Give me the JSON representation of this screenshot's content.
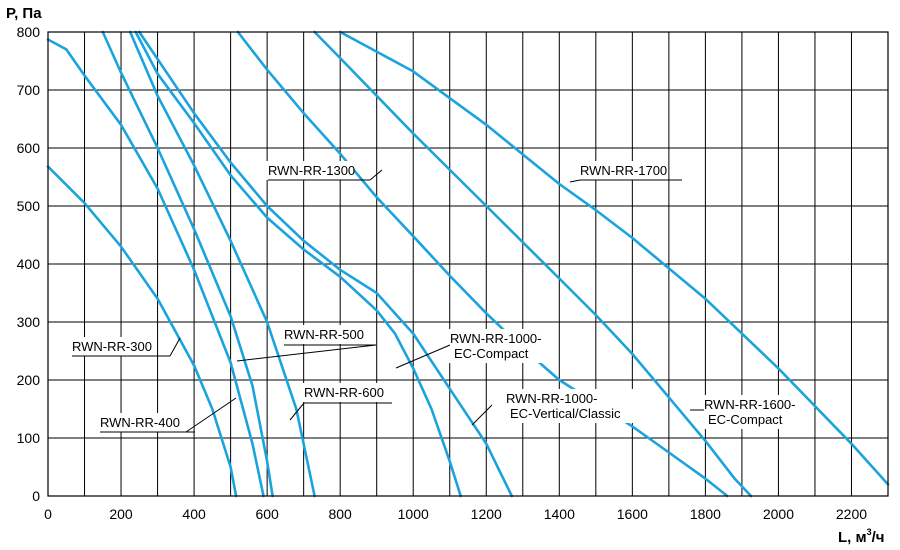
{
  "chart_data": {
    "type": "line",
    "xlabel": "L, м",
    "xlabel_sup": "3",
    "xlabel_suffix": "/ч",
    "ylabel": "P, Па",
    "xlim": [
      0,
      2300
    ],
    "ylim": [
      0,
      800
    ],
    "grid": true,
    "x_ticks": [
      0,
      200,
      400,
      600,
      800,
      1000,
      1200,
      1400,
      1600,
      1800,
      2000,
      2200
    ],
    "x_tick_labels": [
      "0",
      "200",
      "400",
      "600",
      "800",
      "1000",
      "1200",
      "1400",
      "1600",
      "1800",
      "2000",
      "2200"
    ],
    "x_gridlines": [
      100,
      200,
      300,
      400,
      500,
      600,
      700,
      800,
      900,
      1000,
      1100,
      1200,
      1300,
      1400,
      1500,
      1600,
      1700,
      1800,
      1900,
      2000,
      2100,
      2200
    ],
    "y_ticks": [
      0,
      100,
      200,
      300,
      400,
      500,
      600,
      700,
      800
    ],
    "y_tick_labels": [
      "0",
      "100",
      "200",
      "300",
      "400",
      "500",
      "600",
      "700",
      "800"
    ],
    "line_color": "#1aa3dd",
    "series": [
      {
        "name": "RWN-RR-300",
        "label_lines": [
          "RWN-RR-300"
        ],
        "points": [
          [
            0,
            568
          ],
          [
            100,
            505
          ],
          [
            200,
            430
          ],
          [
            300,
            340
          ],
          [
            400,
            225
          ],
          [
            450,
            150
          ],
          [
            500,
            50
          ],
          [
            515,
            0
          ]
        ]
      },
      {
        "name": "RWN-RR-400",
        "label_lines": [
          "RWN-RR-400"
        ],
        "points": [
          [
            0,
            787
          ],
          [
            50,
            770
          ],
          [
            100,
            725
          ],
          [
            200,
            640
          ],
          [
            300,
            530
          ],
          [
            400,
            390
          ],
          [
            500,
            230
          ],
          [
            560,
            90
          ],
          [
            590,
            0
          ]
        ]
      },
      {
        "name": "RWN-RR-500",
        "label_lines": [
          "RWN-RR-500"
        ],
        "points": [
          [
            150,
            800
          ],
          [
            200,
            730
          ],
          [
            300,
            600
          ],
          [
            400,
            460
          ],
          [
            500,
            310
          ],
          [
            560,
            190
          ],
          [
            600,
            60
          ],
          [
            615,
            0
          ]
        ]
      },
      {
        "name": "RWN-RR-600",
        "label_lines": [
          "RWN-RR-600"
        ],
        "points": [
          [
            225,
            800
          ],
          [
            300,
            690
          ],
          [
            400,
            570
          ],
          [
            500,
            440
          ],
          [
            600,
            300
          ],
          [
            680,
            150
          ],
          [
            730,
            0
          ]
        ]
      },
      {
        "name": "RWN-RR-1000-EC-Compact",
        "label_lines": [
          "RWN-RR-1000-",
          "EC-Compact"
        ],
        "points": [
          [
            240,
            800
          ],
          [
            300,
            728
          ],
          [
            400,
            643
          ],
          [
            500,
            553
          ],
          [
            600,
            480
          ],
          [
            700,
            425
          ],
          [
            800,
            378
          ],
          [
            900,
            320
          ],
          [
            950,
            280
          ],
          [
            1000,
            220
          ],
          [
            1050,
            150
          ],
          [
            1100,
            60
          ],
          [
            1130,
            0
          ]
        ]
      },
      {
        "name": "RWN-RR-1000-EC-Vertical/Classic",
        "label_lines": [
          "RWN-RR-1000-",
          "EC-Vertical/Classic"
        ],
        "points": [
          [
            250,
            800
          ],
          [
            400,
            660
          ],
          [
            500,
            575
          ],
          [
            600,
            500
          ],
          [
            700,
            440
          ],
          [
            800,
            390
          ],
          [
            900,
            350
          ],
          [
            1000,
            280
          ],
          [
            1100,
            185
          ],
          [
            1200,
            90
          ],
          [
            1270,
            0
          ]
        ]
      },
      {
        "name": "RWN-RR-1300",
        "label_lines": [
          "RWN-RR-1300"
        ],
        "points": [
          [
            520,
            800
          ],
          [
            600,
            735
          ],
          [
            700,
            660
          ],
          [
            800,
            590
          ],
          [
            900,
            515
          ],
          [
            1000,
            448
          ],
          [
            1100,
            380
          ],
          [
            1200,
            315
          ],
          [
            1300,
            255
          ],
          [
            1400,
            200
          ],
          [
            1500,
            160
          ],
          [
            1600,
            120
          ],
          [
            1700,
            75
          ],
          [
            1800,
            30
          ],
          [
            1860,
            0
          ]
        ]
      },
      {
        "name": "RWN-RR-1600-EC-Compact",
        "label_lines": [
          "RWN-RR-1600-",
          "EC-Compact"
        ],
        "points": [
          [
            730,
            800
          ],
          [
            800,
            755
          ],
          [
            1000,
            625
          ],
          [
            1200,
            500
          ],
          [
            1400,
            375
          ],
          [
            1500,
            312
          ],
          [
            1600,
            245
          ],
          [
            1700,
            170
          ],
          [
            1800,
            95
          ],
          [
            1880,
            30
          ],
          [
            1925,
            0
          ]
        ]
      },
      {
        "name": "RWN-RR-1700",
        "label_lines": [
          "RWN-RR-1700"
        ],
        "points": [
          [
            800,
            800
          ],
          [
            1000,
            732
          ],
          [
            1200,
            640
          ],
          [
            1400,
            538
          ],
          [
            1500,
            493
          ],
          [
            1600,
            445
          ],
          [
            1800,
            340
          ],
          [
            2000,
            220
          ],
          [
            2200,
            90
          ],
          [
            2300,
            20
          ]
        ]
      }
    ]
  }
}
